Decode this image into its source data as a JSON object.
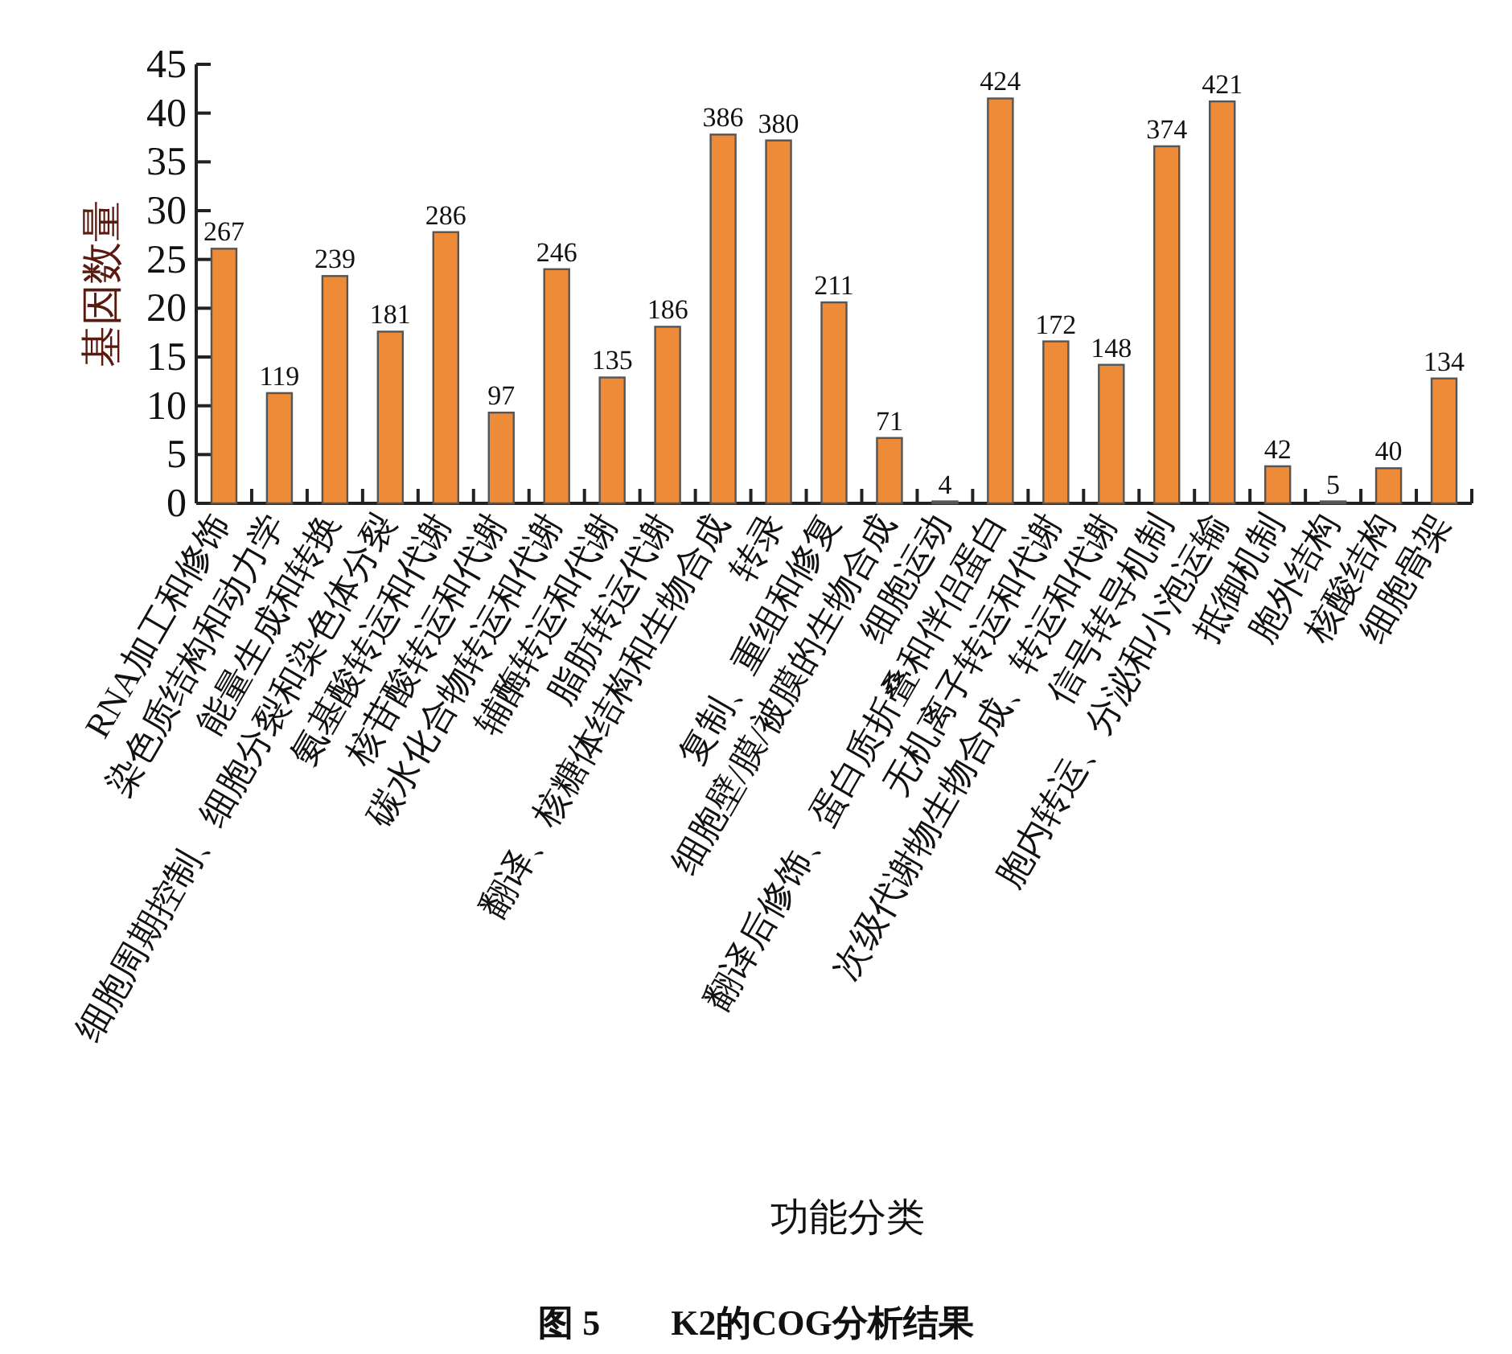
{
  "chart_data": {
    "type": "bar",
    "title": "图 5　　K2的COG分析结果",
    "xlabel": "功能分类",
    "ylabel": "基因数量",
    "categories": [
      "RNA加工和修饰",
      "染色质结构和动力学",
      "能量生成和转换",
      "细胞周期控制、细胞分裂和染色体分裂",
      "氨基酸转运和代谢",
      "核苷酸转运和代谢",
      "碳水化合物转运和代谢",
      "辅酶转运和代谢",
      "脂肪转运代谢",
      "翻译、核糖体结构和生物合成",
      "转录",
      "复制、重组和修复",
      "细胞壁/膜/被膜的生物合成",
      "细胞运动",
      "翻译后修饰、蛋白质折叠和伴侣蛋白",
      "无机离子转运和代谢",
      "次级代谢物生物合成、转运和代谢",
      "信号转导机制",
      "胞内转运、分泌和小泡运输",
      "抵御机制",
      "胞外结构",
      "核酸结构",
      "细胞骨架"
    ],
    "values": [
      26.1,
      11.3,
      23.3,
      17.6,
      27.8,
      9.3,
      24.0,
      12.9,
      18.1,
      37.8,
      37.2,
      20.6,
      6.7,
      0.2,
      41.5,
      16.6,
      14.2,
      36.6,
      41.2,
      3.8,
      0.2,
      3.6,
      12.8
    ],
    "annotations": [
      {
        "text": "267",
        "x": "RNA加工和修饰",
        "y": 26.1
      },
      {
        "text": "119",
        "x": "染色质结构和动力学",
        "y": 11.3
      },
      {
        "text": "239",
        "x": "能量生成和转换",
        "y": 23.3
      },
      {
        "text": "181",
        "x": "细胞周期控制、细胞分裂和染色体分裂",
        "y": 17.6
      },
      {
        "text": "286",
        "x": "氨基酸转运和代谢",
        "y": 27.8
      },
      {
        "text": "97",
        "x": "核苷酸转运和代谢",
        "y": 9.3
      },
      {
        "text": "246",
        "x": "碳水化合物转运和代谢",
        "y": 24.0
      },
      {
        "text": "135",
        "x": "辅酶转运和代谢",
        "y": 12.9
      },
      {
        "text": "186",
        "x": "脂肪转运代谢",
        "y": 18.1
      },
      {
        "text": "386",
        "x": "翻译、核糖体结构和生物合成",
        "y": 37.8
      },
      {
        "text": "380",
        "x": "转录",
        "y": 37.2
      },
      {
        "text": "211",
        "x": "复制、重组和修复",
        "y": 20.6
      },
      {
        "text": "71",
        "x": "细胞壁/膜/被膜的生物合成",
        "y": 6.7
      },
      {
        "text": "4",
        "x": "细胞运动",
        "y": 0.2
      },
      {
        "text": "424",
        "x": "翻译后修饰、蛋白质折叠和伴侣蛋白",
        "y": 41.5
      },
      {
        "text": "172",
        "x": "无机离子转运和代谢",
        "y": 16.6
      },
      {
        "text": "148",
        "x": "次级代谢物生物合成、转运和代谢",
        "y": 14.2
      },
      {
        "text": "374",
        "x": "信号转导机制",
        "y": 36.6
      },
      {
        "text": "421",
        "x": "胞内转运、分泌和小泡运输",
        "y": 41.2
      },
      {
        "text": "42",
        "x": "抵御机制",
        "y": 3.8
      },
      {
        "text": "5",
        "x": "胞外结构",
        "y": 0.2
      },
      {
        "text": "40",
        "x": "核酸结构",
        "y": 3.6
      },
      {
        "text": "134",
        "x": "细胞骨架",
        "y": 12.8
      }
    ],
    "color": "#ed8b39",
    "ylim": [
      0,
      45
    ],
    "yticks": [
      0,
      5,
      10,
      15,
      20,
      25,
      30,
      35,
      40,
      45
    ]
  }
}
